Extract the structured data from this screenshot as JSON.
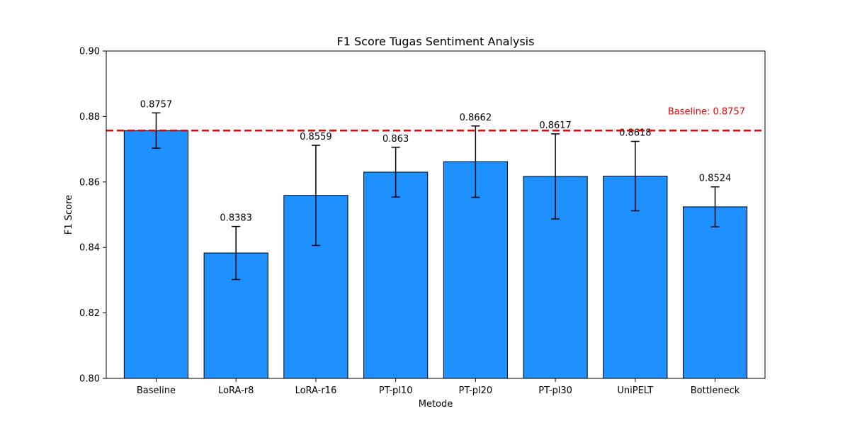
{
  "colors": {
    "bar": "#1e90ff",
    "bar_edge": "#000000",
    "baseline": "#ee0000",
    "error_bar": "#000000"
  },
  "chart_data": {
    "type": "bar",
    "title": "F1 Score Tugas Sentiment Analysis",
    "xlabel": "Metode",
    "ylabel": "F1 Score",
    "ylim": [
      0.8,
      0.9
    ],
    "yticks": [
      0.8,
      0.82,
      0.84,
      0.86,
      0.88,
      0.9
    ],
    "ytick_labels": [
      "0.80",
      "0.82",
      "0.84",
      "0.86",
      "0.88",
      "0.90"
    ],
    "grid": false,
    "categories": [
      "Baseline",
      "LoRA-r8",
      "LoRA-r16",
      "PT-pl10",
      "PT-pl20",
      "PT-pl30",
      "UniPELT",
      "Bottleneck"
    ],
    "values": [
      0.8757,
      0.8383,
      0.8559,
      0.863,
      0.8662,
      0.8617,
      0.8618,
      0.8524
    ],
    "value_labels": [
      "0.8757",
      "0.8383",
      "0.8559",
      "0.863",
      "0.8662",
      "0.8617",
      "0.8618",
      "0.8524"
    ],
    "errors": [
      0.0054,
      0.0081,
      0.0153,
      0.0076,
      0.0109,
      0.013,
      0.0106,
      0.0061
    ],
    "reference_line": {
      "value": 0.8757,
      "label": "Baseline: 0.8757",
      "style": "dashed"
    }
  }
}
